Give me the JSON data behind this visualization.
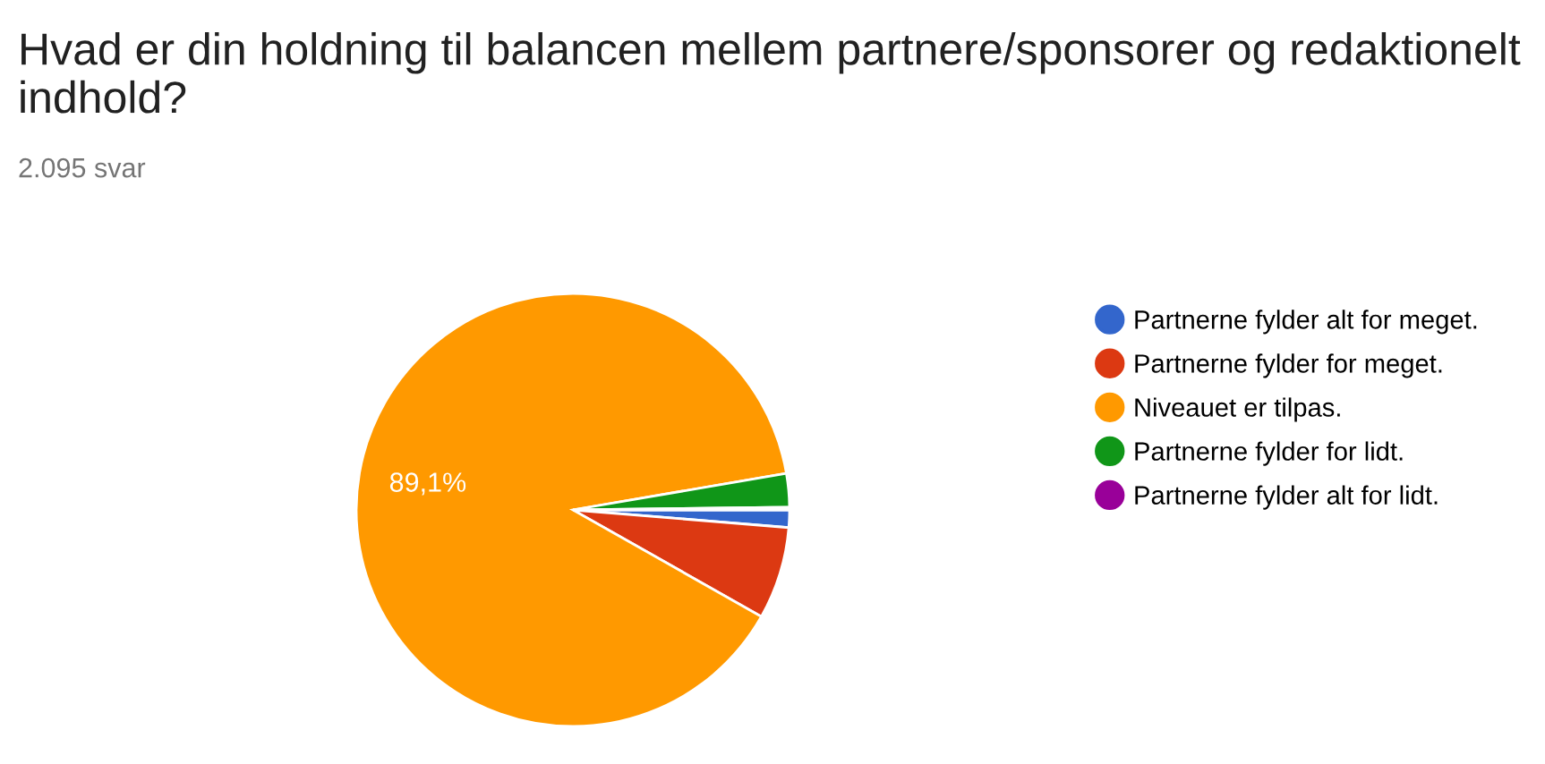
{
  "chart_data": {
    "type": "pie",
    "title": "Hvad er din holdning til balancen mellem partnere/sponsorer og redaktionelt indhold?",
    "subtitle": "2.095 svar",
    "categories": [
      "Partnerne fylder alt for meget.",
      "Partnerne fylder for meget.",
      "Niveauet er tilpas.",
      "Partnerne fylder for lidt.",
      "Partnerne fylder alt for lidt."
    ],
    "values": [
      1.3,
      6.9,
      89.1,
      2.5,
      0.2
    ],
    "colors": [
      "#3366cc",
      "#dc3912",
      "#ff9900",
      "#109618",
      "#990099"
    ],
    "value_labels": [
      null,
      null,
      "89,1%",
      null,
      null
    ],
    "legend": "right"
  }
}
